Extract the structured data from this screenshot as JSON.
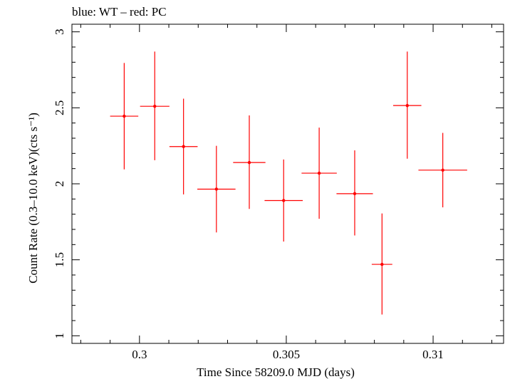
{
  "chart_data": {
    "type": "scatter",
    "title": "blue: WT – red: PC",
    "xlabel": "Time Since 58209.0 MJD (days)",
    "ylabel": "Count Rate (0.3–10.0 keV)(cts s⁻¹)",
    "xlim": [
      0.2977,
      0.3124
    ],
    "ylim": [
      0.95,
      3.05
    ],
    "x_ticks": [
      0.3,
      0.305,
      0.31
    ],
    "x_tick_labels": [
      "0.3",
      "0.305",
      "0.31"
    ],
    "y_ticks": [
      1,
      1.5,
      2,
      2.5,
      3
    ],
    "y_tick_labels": [
      "1",
      "1.5",
      "2",
      "2.5",
      "3"
    ],
    "grid": false,
    "colors": {
      "PC": "#ff0000",
      "WT": "#0000ff"
    },
    "series": [
      {
        "color": "#ff0000",
        "points": [
          {
            "x": 0.29948,
            "xerr": 0.00048,
            "y": 2.445,
            "ylo": 2.095,
            "yhi": 2.795
          },
          {
            "x": 0.30052,
            "xerr": 0.0005,
            "y": 2.51,
            "ylo": 2.155,
            "yhi": 2.87
          },
          {
            "x": 0.3015,
            "xerr": 0.00048,
            "y": 2.245,
            "ylo": 1.93,
            "yhi": 2.56
          },
          {
            "x": 0.30262,
            "xerr": 0.00065,
            "y": 1.965,
            "ylo": 1.68,
            "yhi": 2.25
          },
          {
            "x": 0.30374,
            "xerr": 0.00055,
            "y": 2.14,
            "ylo": 1.835,
            "yhi": 2.45
          },
          {
            "x": 0.30491,
            "xerr": 0.00065,
            "y": 1.89,
            "ylo": 1.62,
            "yhi": 2.16
          },
          {
            "x": 0.30612,
            "xerr": 0.0006,
            "y": 2.07,
            "ylo": 1.77,
            "yhi": 2.37
          },
          {
            "x": 0.30733,
            "xerr": 0.00062,
            "y": 1.935,
            "ylo": 1.66,
            "yhi": 2.22
          },
          {
            "x": 0.30826,
            "xerr": 0.00035,
            "y": 1.47,
            "ylo": 1.14,
            "yhi": 1.805
          },
          {
            "x": 0.30912,
            "xerr": 0.00048,
            "y": 2.515,
            "ylo": 2.165,
            "yhi": 2.87
          },
          {
            "x": 0.31033,
            "xerr": 0.00083,
            "y": 2.09,
            "ylo": 1.845,
            "yhi": 2.335
          }
        ]
      }
    ]
  }
}
